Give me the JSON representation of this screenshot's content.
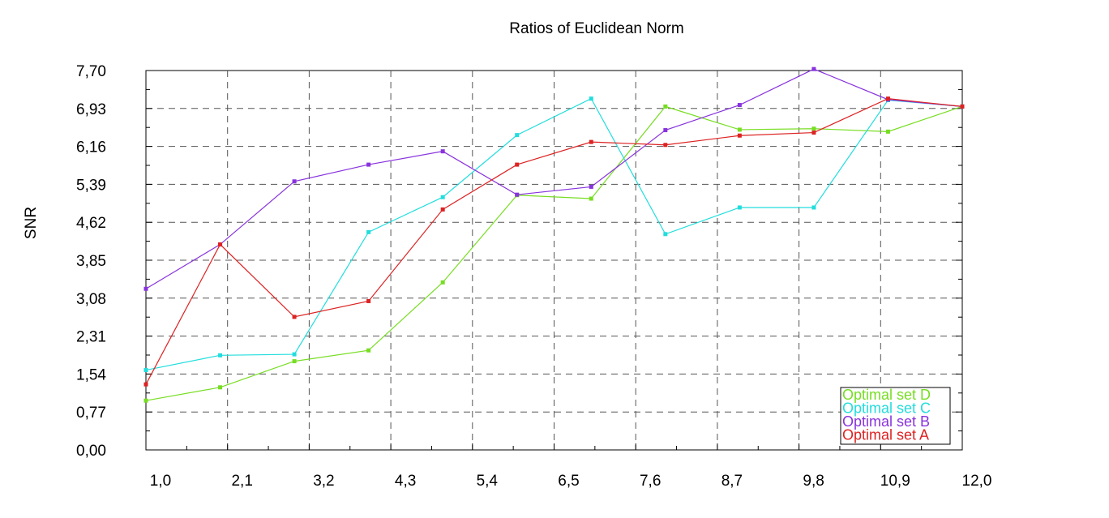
{
  "chart_data": {
    "type": "line",
    "title": "Ratios of Euclidean Norm",
    "xlabel": "",
    "ylabel": "SNR",
    "xlim": [
      1.0,
      12.0
    ],
    "ylim": [
      0.0,
      7.7
    ],
    "x_ticks": [
      "1,0",
      "2,1",
      "3,2",
      "4,3",
      "5,4",
      "6,5",
      "7,6",
      "8,7",
      "9,8",
      "10,9",
      "12,0"
    ],
    "y_ticks": [
      "0,00",
      "0,77",
      "1,54",
      "2,31",
      "3,08",
      "3,85",
      "4,62",
      "5,39",
      "6,16",
      "6,93",
      "7,70"
    ],
    "grid": true,
    "legend_position": "bottom-right",
    "x": [
      1.0,
      2.0,
      3.0,
      4.0,
      5.0,
      6.0,
      7.0,
      8.0,
      9.0,
      10.0,
      11.0,
      12.0
    ],
    "series": [
      {
        "name": "Optimal set D",
        "color": "#77dd22",
        "values": [
          1.0,
          1.27,
          1.8,
          2.02,
          3.4,
          5.17,
          5.1,
          6.97,
          6.5,
          6.52,
          6.46,
          6.97
        ]
      },
      {
        "name": "Optimal set C",
        "color": "#22dddd",
        "values": [
          1.62,
          1.92,
          1.94,
          4.42,
          5.13,
          6.39,
          7.13,
          4.38,
          4.92,
          4.92,
          7.1,
          6.97
        ]
      },
      {
        "name": "Optimal set B",
        "color": "#8833dd",
        "values": [
          3.27,
          4.17,
          5.45,
          5.79,
          6.06,
          5.18,
          5.34,
          6.49,
          7.0,
          7.73,
          7.11,
          6.97
        ]
      },
      {
        "name": "Optimal set A",
        "color": "#dd2222",
        "values": [
          1.33,
          4.17,
          2.7,
          3.02,
          4.88,
          5.79,
          6.25,
          6.19,
          6.38,
          6.44,
          7.13,
          6.97
        ]
      }
    ]
  }
}
